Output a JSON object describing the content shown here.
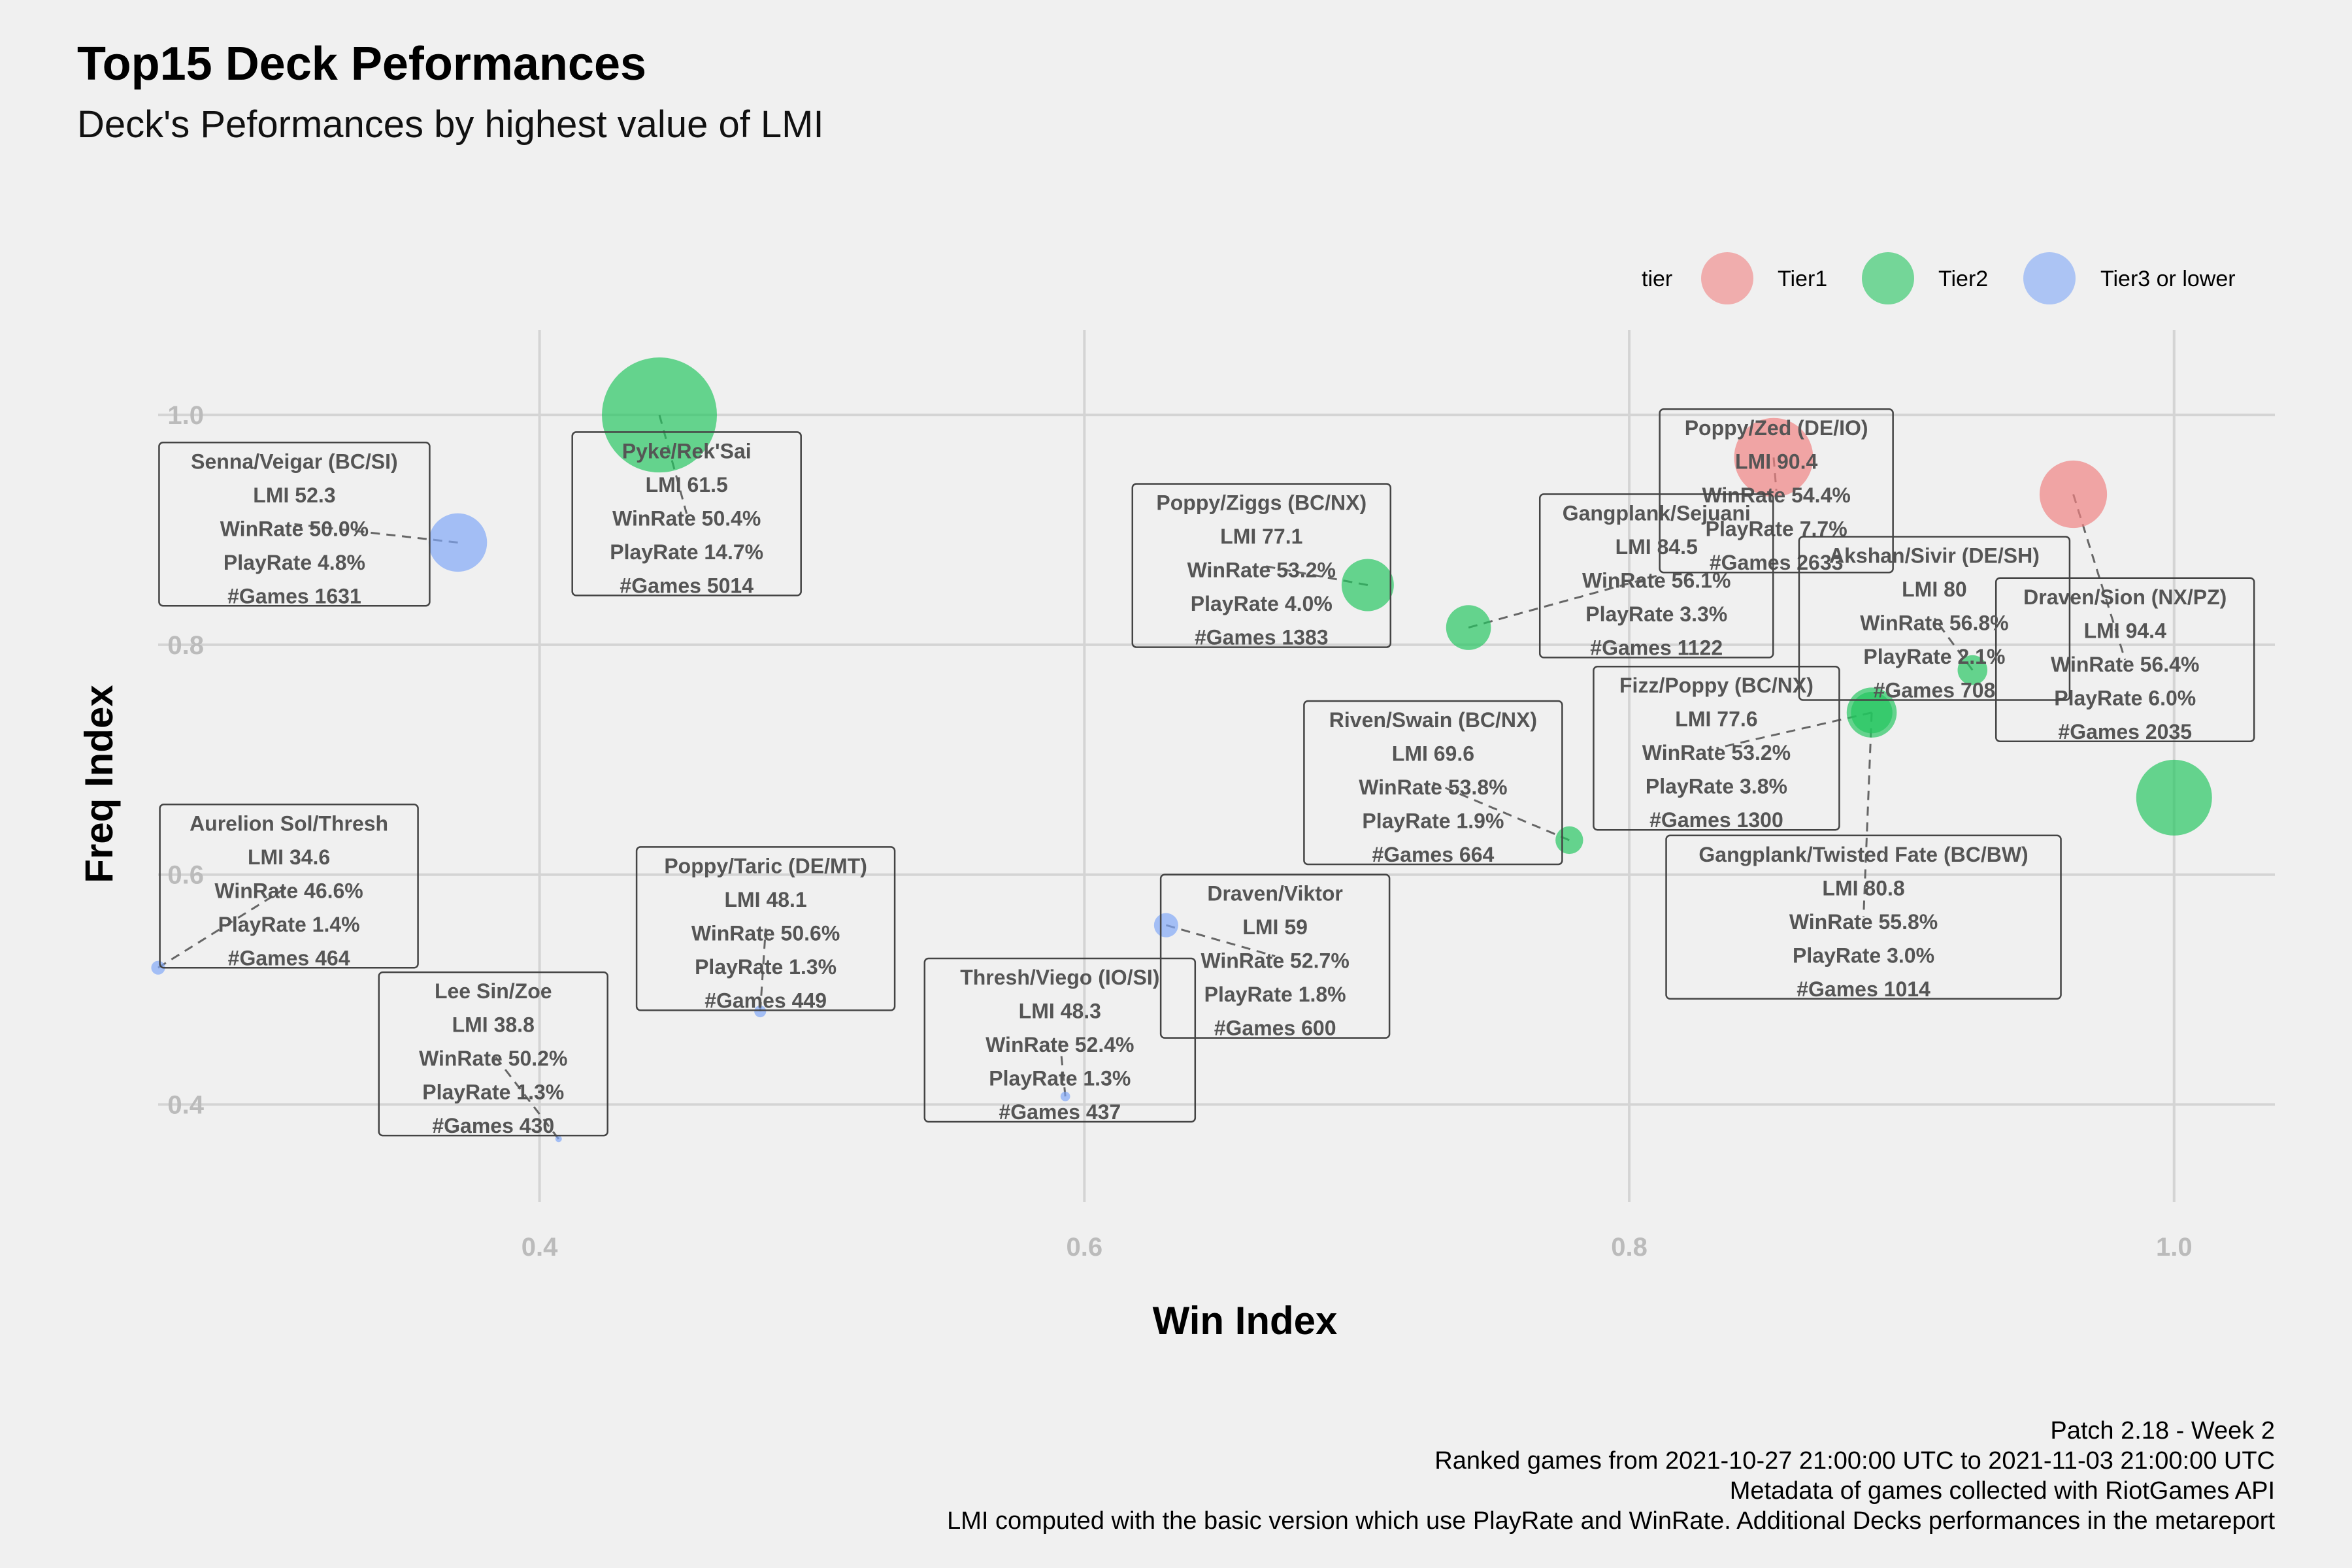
{
  "header": {
    "title": "Top15 Deck Peformances",
    "subtitle": "Deck's Peformances by highest value of LMI"
  },
  "legend": {
    "title": "tier",
    "items": [
      {
        "label": "Tier1",
        "color": "#f08080"
      },
      {
        "label": "Tier2",
        "color": "#22c55e"
      },
      {
        "label": "Tier3 or lower",
        "color": "#7fa7f7"
      }
    ]
  },
  "footer": {
    "lines": [
      "Patch 2.18 - Week 2",
      "Ranked games from 2021-10-27 21:00:00 UTC to 2021-11-03 21:00:00 UTC",
      "Metadata of games collected with RiotGames API",
      "LMI computed with the basic version which use PlayRate and WinRate. Additional Decks performances in the metareport"
    ]
  },
  "chart_data": {
    "type": "scatter",
    "xlabel": "Win Index",
    "ylabel": "Freq Index",
    "xlim": [
      0.26,
      1.037
    ],
    "ylim": [
      0.315,
      1.074
    ],
    "xticks": [
      0.4,
      0.6,
      0.8,
      1.0
    ],
    "xtick_labels": [
      "0.4",
      "0.6",
      "0.8",
      "1.0"
    ],
    "yticks": [
      0.4,
      0.6,
      0.8,
      1.0
    ],
    "ytick_labels": [
      "0.4",
      "0.6",
      "0.8",
      "1.0"
    ],
    "grid": true,
    "legend_position": "top-right",
    "colors": {
      "Tier1": "#f08080",
      "Tier2": "#22c55e",
      "Tier3 or lower": "#7fa7f7"
    },
    "points": [
      {
        "deck": "Poppy/Zed (DE/IO)",
        "tier": "Tier1",
        "x": 0.853,
        "y": 0.963,
        "lmi": "LMI 90.4",
        "winrate": "WinRate 54.4%",
        "playrate": "PlayRate 7.7%",
        "games": "#Games 2633",
        "lx": 0.854,
        "ly": 0.934
      },
      {
        "deck": "Draven/Sion (NX/PZ)",
        "tier": "Tier1",
        "x": 0.963,
        "y": 0.931,
        "lmi": "LMI 94.4",
        "winrate": "WinRate 56.4%",
        "playrate": "PlayRate 6.0%",
        "games": "#Games 2035",
        "lx": 0.982,
        "ly": 0.787
      },
      {
        "deck": "Pyke/Rek'Sai",
        "tier": "Tier2",
        "x": 0.444,
        "y": 1.0,
        "lmi": "LMI 61.5",
        "winrate": "WinRate 50.4%",
        "playrate": "PlayRate 14.7%",
        "games": "#Games 5014",
        "lx": 0.454,
        "ly": 0.914
      },
      {
        "deck": "Poppy/Ziggs (BC/NX)",
        "tier": "Tier2",
        "x": 0.704,
        "y": 0.852,
        "lmi": "LMI 77.1",
        "winrate": "WinRate 53.2%",
        "playrate": "PlayRate 4.0%",
        "games": "#Games 1383",
        "lx": 0.665,
        "ly": 0.869
      },
      {
        "deck": "Gangplank/Sejuani",
        "tier": "Tier2",
        "x": 0.741,
        "y": 0.815,
        "lmi": "LMI 84.5",
        "winrate": "WinRate 56.1%",
        "playrate": "PlayRate 3.3%",
        "games": "#Games 1122",
        "lx": 0.81,
        "ly": 0.86
      },
      {
        "deck": "Akshan/Sivir (DE/SH)",
        "tier": "Tier2",
        "x": 0.926,
        "y": 0.778,
        "lmi": "LMI 80",
        "winrate": "WinRate 56.8%",
        "playrate": "PlayRate 2.1%",
        "games": "#Games 708",
        "lx": 0.912,
        "ly": 0.823
      },
      {
        "deck": "Fizz/Poppy (BC/NX)",
        "tier": "Tier2",
        "x": 0.889,
        "y": 0.741,
        "lmi": "LMI 77.6",
        "winrate": "WinRate 53.2%",
        "playrate": "PlayRate 3.8%",
        "games": "#Games 1300",
        "lx": 0.832,
        "ly": 0.71
      },
      {
        "deck": "Gangplank/Twisted Fate (BC/BW)",
        "tier": "Tier2",
        "x": 0.889,
        "y": 0.741,
        "lmi": "LMI 80.8",
        "winrate": "WinRate 55.8%",
        "playrate": "PlayRate 3.0%",
        "games": "#Games 1014",
        "lx": 0.886,
        "ly": 0.563
      },
      {
        "deck": "Riven/Swain (BC/NX)",
        "tier": "Tier2",
        "x": 0.778,
        "y": 0.63,
        "lmi": "LMI 69.6",
        "winrate": "WinRate 53.8%",
        "playrate": "PlayRate 1.9%",
        "games": "#Games 664",
        "lx": 0.728,
        "ly": 0.68
      },
      {
        "deck": "Draven/Sion (NX/PZ)",
        "tier": "Tier2",
        "x": 1.0,
        "y": 0.667,
        "lmi": "",
        "winrate": "",
        "playrate": "",
        "games": "",
        "lx": 1.0,
        "ly": 0.667
      },
      {
        "deck": "Senna/Veigar (BC/SI)",
        "tier": "Tier3 or lower",
        "x": 0.37,
        "y": 0.889,
        "lmi": "LMI 52.3",
        "winrate": "WinRate 50.0%",
        "playrate": "PlayRate 4.8%",
        "games": "#Games 1631",
        "lx": 0.31,
        "ly": 0.905
      },
      {
        "deck": "Aurelion Sol/Thresh",
        "tier": "Tier3 or lower",
        "x": 0.26,
        "y": 0.519,
        "lmi": "LMI 34.6",
        "winrate": "WinRate 46.6%",
        "playrate": "PlayRate 1.4%",
        "games": "#Games 464",
        "lx": 0.308,
        "ly": 0.59
      },
      {
        "deck": "Poppy/Taric (DE/MT)",
        "tier": "Tier3 or lower",
        "x": 0.481,
        "y": 0.481,
        "lmi": "LMI 48.1",
        "winrate": "WinRate 50.6%",
        "playrate": "PlayRate 1.3%",
        "games": "#Games 449",
        "lx": 0.483,
        "ly": 0.553
      },
      {
        "deck": "Lee Sin/Zoe",
        "tier": "Tier3 or lower",
        "x": 0.407,
        "y": 0.37,
        "lmi": "LMI 38.8",
        "winrate": "WinRate 50.2%",
        "playrate": "PlayRate 1.3%",
        "games": "#Games 430",
        "lx": 0.383,
        "ly": 0.444
      },
      {
        "deck": "Thresh/Viego (IO/SI)",
        "tier": "Tier3 or lower",
        "x": 0.593,
        "y": 0.407,
        "lmi": "LMI 48.3",
        "winrate": "WinRate 52.4%",
        "playrate": "PlayRate 1.3%",
        "games": "#Games 437",
        "lx": 0.591,
        "ly": 0.456
      },
      {
        "deck": "Draven/Viktor",
        "tier": "Tier3 or lower",
        "x": 0.63,
        "y": 0.556,
        "lmi": "LMI 59",
        "winrate": "WinRate 52.7%",
        "playrate": "PlayRate 1.8%",
        "games": "#Games 600",
        "lx": 0.67,
        "ly": 0.529
      }
    ]
  }
}
